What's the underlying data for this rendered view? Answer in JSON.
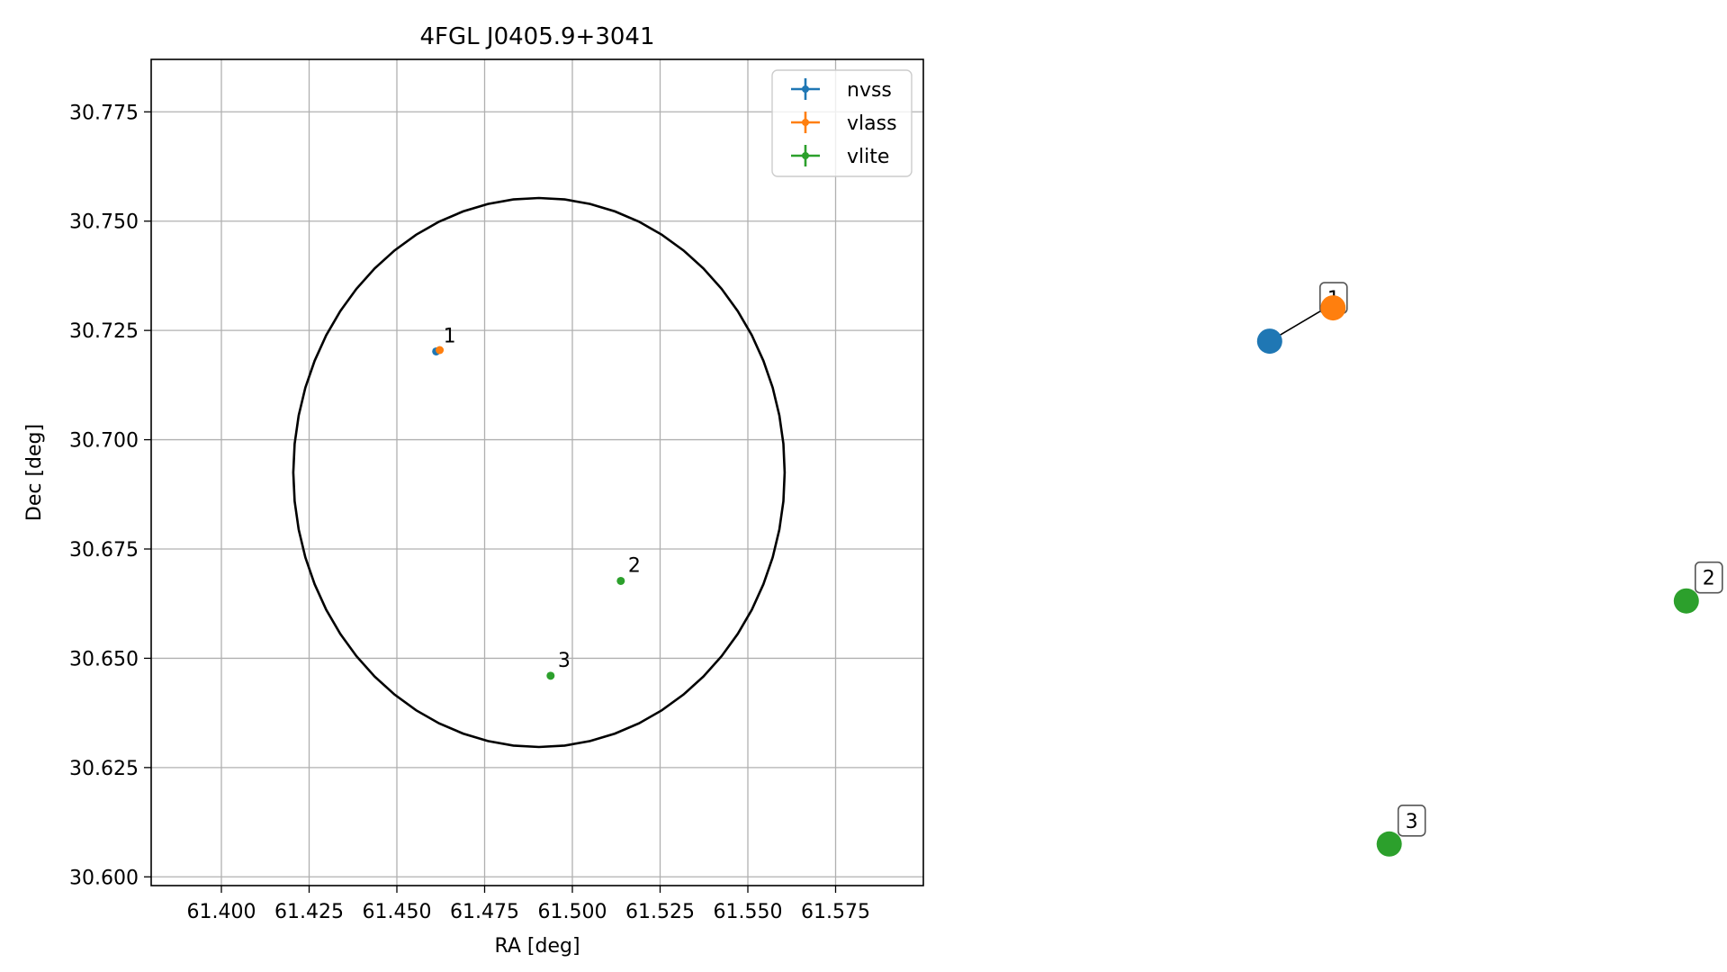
{
  "chart_data": [
    {
      "type": "scatter",
      "title": "4FGL J0405.9+3041",
      "xlabel": "RA [deg]",
      "ylabel": "Dec [deg]",
      "xlim": [
        61.38,
        61.6
      ],
      "ylim": [
        30.598,
        30.787
      ],
      "xticks": [
        "61.400",
        "61.425",
        "61.450",
        "61.475",
        "61.500",
        "61.525",
        "61.550",
        "61.575"
      ],
      "yticks": [
        "30.600",
        "30.625",
        "30.650",
        "30.675",
        "30.700",
        "30.725",
        "30.750",
        "30.775"
      ],
      "grid": true,
      "legend": "top-right",
      "series": [
        {
          "name": "nvss",
          "color": "#1f77b4",
          "points": [
            {
              "x": 61.4612,
              "y": 30.7202,
              "label": "1"
            }
          ]
        },
        {
          "name": "vlass",
          "color": "#ff7f0e",
          "points": [
            {
              "x": 61.4622,
              "y": 30.7205,
              "label": ""
            }
          ]
        },
        {
          "name": "vlite",
          "color": "#2ca02c",
          "points": [
            {
              "x": 61.5138,
              "y": 30.6677,
              "label": "2"
            },
            {
              "x": 61.4938,
              "y": 30.646,
              "label": "3"
            }
          ]
        }
      ],
      "ellipse": {
        "center": [
          61.4905,
          30.6925
        ],
        "rx": 0.07,
        "ry": 0.0628,
        "color": "#000000"
      }
    },
    {
      "type": "scatter",
      "title": "",
      "xlabel": "",
      "ylabel": "",
      "grid": false,
      "axes": "off",
      "xlim": [
        0,
        100
      ],
      "ylim": [
        0,
        100
      ],
      "groups": [
        {
          "label": "1",
          "points": [
            {
              "series": "nvss",
              "color": "#1f77b4",
              "x": 26.5,
              "y": 78.5
            },
            {
              "series": "vlass",
              "color": "#ff7f0e",
              "x": 37.0,
              "y": 83.5
            }
          ]
        },
        {
          "label": "2",
          "points": [
            {
              "series": "vlite",
              "color": "#2ca02c",
              "x": 95.5,
              "y": 39.5
            }
          ]
        },
        {
          "label": "3",
          "points": [
            {
              "series": "vlite",
              "color": "#2ca02c",
              "x": 46.3,
              "y": 3.0
            }
          ]
        }
      ]
    }
  ]
}
